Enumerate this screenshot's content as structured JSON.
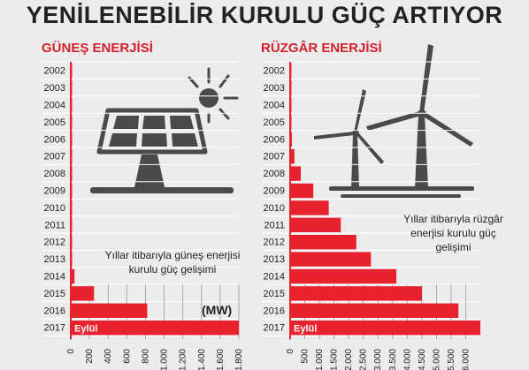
{
  "header": {
    "title": "YENİLENEBİLİR KURULU GÜÇ ARTIYOR"
  },
  "annotations": {
    "solar_note": "Yıllar itibarıyla güneş enerjisi kurulu güç gelişimi",
    "wind_note": "Yıllar itibarıyla rüzgâr enerjisi kurulu güç gelişimi",
    "unit": "(MW)",
    "month_label": "Eylül"
  },
  "colors": {
    "bar": "#e8212e",
    "accent_text": "#d51f2b",
    "icon": "#4a4a4a",
    "background": "#ececec"
  },
  "icons": {
    "solar": "solar-panel-icon",
    "wind": "wind-turbine-icon"
  },
  "chart_data": [
    {
      "type": "bar",
      "orientation": "horizontal",
      "title": "GÜNEŞ ENERJİSİ",
      "categories": [
        "2002",
        "2003",
        "2004",
        "2005",
        "2006",
        "2007",
        "2008",
        "2009",
        "2010",
        "2011",
        "2012",
        "2013",
        "2014",
        "2015",
        "2016",
        "2017"
      ],
      "values": [
        1,
        1,
        1,
        1,
        1,
        2,
        2,
        3,
        3,
        3,
        3,
        7,
        40,
        249,
        819,
        1800
      ],
      "xlim": [
        0,
        1800
      ],
      "xticks": [
        "0",
        "200",
        "400",
        "600",
        "800",
        "1.000",
        "1.200",
        "1.400",
        "1.600",
        "1.800"
      ],
      "xtick_values": [
        0,
        200,
        400,
        600,
        800,
        1000,
        1200,
        1400,
        1600,
        1800
      ],
      "grid": true
    },
    {
      "type": "bar",
      "orientation": "horizontal",
      "title": "RÜZGÂR ENERJİSİ",
      "categories": [
        "2002",
        "2003",
        "2004",
        "2005",
        "2006",
        "2007",
        "2008",
        "2009",
        "2010",
        "2011",
        "2012",
        "2013",
        "2014",
        "2015",
        "2016",
        "2017"
      ],
      "values": [
        19,
        19,
        19,
        20,
        59,
        146,
        364,
        792,
        1320,
        1729,
        2261,
        2760,
        3630,
        4503,
        5751,
        6500
      ],
      "xlim": [
        0,
        6500
      ],
      "xticks": [
        "0",
        "500",
        "1.000",
        "1.500",
        "2.000",
        "2.500",
        "3.000",
        "3.500",
        "4.000",
        "4.500",
        "5.000",
        "5.500",
        "6.000"
      ],
      "xtick_values": [
        0,
        500,
        1000,
        1500,
        2000,
        2500,
        3000,
        3500,
        4000,
        4500,
        5000,
        5500,
        6000
      ],
      "grid": true
    }
  ]
}
